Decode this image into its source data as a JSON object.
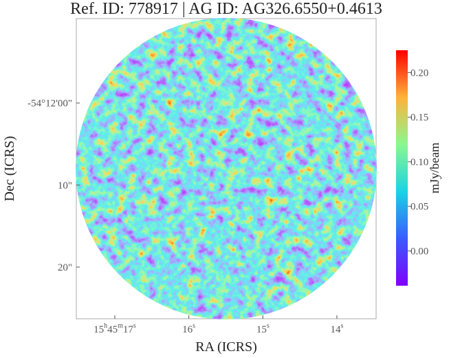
{
  "chart_data": {
    "type": "image",
    "title": "Ref. ID: 778917 | AG ID: AG326.6550+0.4613",
    "x_label": "RA (ICRS)",
    "y_label": "Dec (ICRS)",
    "xlim": [
      17.52,
      13.47
    ],
    "xticks": [
      {
        "value": 17,
        "label": "15h45m17s"
      },
      {
        "value": 16,
        "label": "16s"
      },
      {
        "value": 15,
        "label": "15s"
      },
      {
        "value": 14,
        "label": "14s"
      }
    ],
    "ylim": [
      26.3,
      -10.3
    ],
    "yticks": [
      {
        "value": 0,
        "label": "-54°12'00\""
      },
      {
        "value": 10,
        "label": "10\""
      },
      {
        "value": 20,
        "label": "20\""
      }
    ],
    "colorbar": {
      "label": "mJy/beam",
      "clim": [
        -0.039,
        0.225
      ],
      "ticks": [
        {
          "value": 0,
          "label": "0.00"
        },
        0.05,
        {
          "value": 0.1,
          "label": "0.10"
        },
        0.15,
        {
          "value": 0.2,
          "label": "0.20"
        }
      ]
    }
  }
}
